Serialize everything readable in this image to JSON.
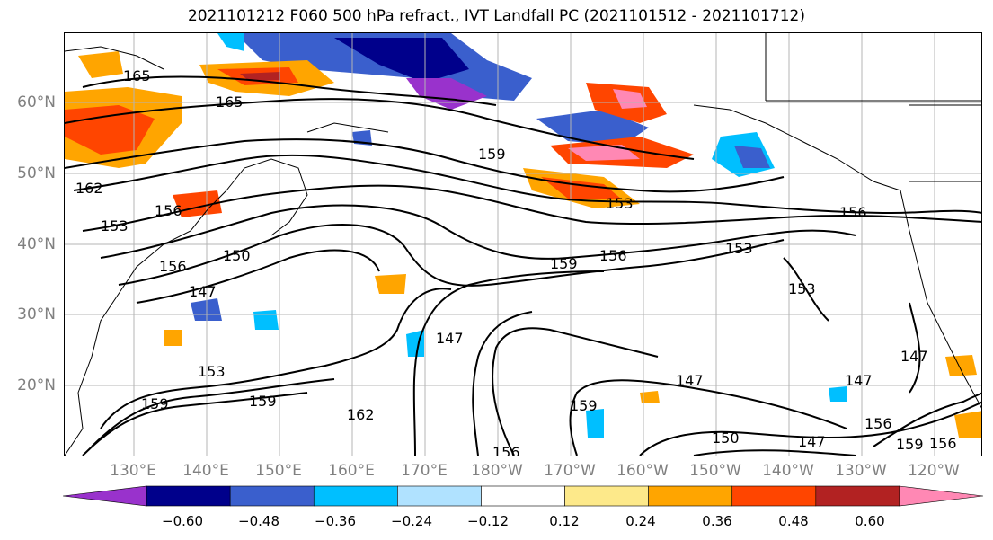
{
  "title": "2021101212 F060 500 hPa refract., IVT Landfall PC (2021101512 - 2021101712)",
  "map": {
    "lat_labels": [
      "60°N",
      "50°N",
      "40°N",
      "30°N",
      "20°N"
    ],
    "lon_labels": [
      "130°E",
      "140°E",
      "150°E",
      "160°E",
      "170°E",
      "180°W",
      "170°W",
      "160°W",
      "150°W",
      "140°W",
      "130°W",
      "120°W"
    ],
    "contour_labels": [
      "165",
      "165",
      "159",
      "162",
      "156",
      "153",
      "156",
      "153",
      "159",
      "156",
      "150",
      "147",
      "156",
      "153",
      "147",
      "153",
      "159",
      "159",
      "162",
      "159",
      "147",
      "150",
      "156",
      "147",
      "147",
      "147",
      "156",
      "159",
      "156",
      "153"
    ]
  },
  "colorbar": {
    "ticks": [
      "−0.60",
      "−0.48",
      "−0.36",
      "−0.24",
      "−0.12",
      "0.12",
      "0.24",
      "0.36",
      "0.48",
      "0.60"
    ],
    "colors": [
      "#9932cc",
      "#00008b",
      "#3a5fcd",
      "#00bfff",
      "#b0e2ff",
      "#ffffff",
      "#fde98a",
      "#ffa500",
      "#ff4500",
      "#b22222",
      "#ff88b4"
    ]
  }
}
